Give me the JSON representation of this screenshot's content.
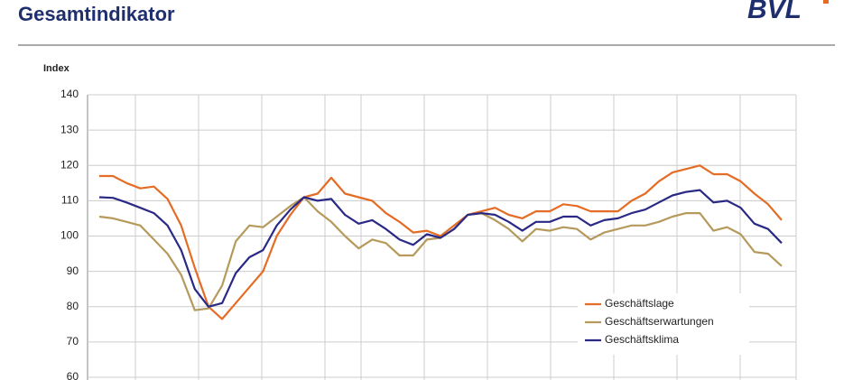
{
  "header": {
    "title": "Gesamtindikator",
    "logo": "BVL"
  },
  "chart_data": {
    "type": "line",
    "ylabel": "Index",
    "categories": [
      null,
      null,
      null,
      null,
      null,
      null,
      null,
      null,
      null,
      null,
      null,
      null,
      null,
      null,
      null,
      null,
      null,
      null,
      null,
      null,
      null,
      null,
      null,
      null,
      null,
      null,
      null,
      null,
      null,
      null,
      null,
      null,
      null,
      null,
      null,
      null,
      null,
      null,
      null,
      null,
      null,
      null,
      null,
      null,
      null,
      null,
      null,
      null,
      null,
      null,
      null
    ],
    "series": [
      {
        "name": "Geschäftslage",
        "color": "#e46c24",
        "values": [
          117,
          117,
          115,
          113.5,
          114,
          110.5,
          103,
          91,
          80,
          76.5,
          81,
          85.5,
          90,
          100,
          106,
          111,
          112,
          116.5,
          112,
          111,
          110,
          106.5,
          104,
          101,
          101.5,
          100,
          103,
          106,
          107,
          108,
          106,
          105,
          107,
          107,
          109,
          108.5,
          107,
          107,
          107,
          110,
          112,
          115.5,
          118,
          119,
          120,
          117.5,
          117.5,
          115.5,
          112,
          109,
          104.5
        ]
      },
      {
        "name": "Geschäftserwartungen",
        "color": "#b59a5c",
        "values": [
          105.5,
          105,
          104,
          103,
          99,
          95,
          89,
          79,
          79.5,
          86,
          98.5,
          103,
          102.5,
          105.5,
          108.5,
          111,
          107,
          104,
          100,
          96.5,
          99,
          98,
          94.5,
          94.5,
          99,
          99.5,
          102,
          106,
          106.5,
          104.5,
          102,
          98.5,
          102,
          101.5,
          102.5,
          102,
          99,
          101,
          102,
          103,
          103,
          104,
          105.5,
          106.5,
          106.5,
          101.5,
          102.5,
          100.5,
          95.5,
          95,
          91.5
        ]
      },
      {
        "name": "Geschäftsklima",
        "color": "#2a2a86",
        "values": [
          111,
          110.8,
          109.5,
          108,
          106.5,
          103,
          96,
          85,
          80,
          81,
          89.5,
          94,
          96,
          103,
          107.5,
          111,
          110,
          110.5,
          106,
          103.5,
          104.5,
          102,
          99,
          97.5,
          100.5,
          99.5,
          102,
          106,
          106.5,
          106,
          104,
          101.5,
          104,
          104,
          105.5,
          105.5,
          103,
          104.5,
          105,
          106.5,
          107.5,
          109.5,
          111.5,
          112.5,
          113,
          109.5,
          110,
          108,
          103.5,
          102,
          98
        ]
      }
    ],
    "ylim": [
      60,
      140
    ],
    "yticks": [
      60,
      70,
      80,
      90,
      100,
      110,
      120,
      130,
      140
    ],
    "grid": true,
    "legend": "lower right"
  }
}
